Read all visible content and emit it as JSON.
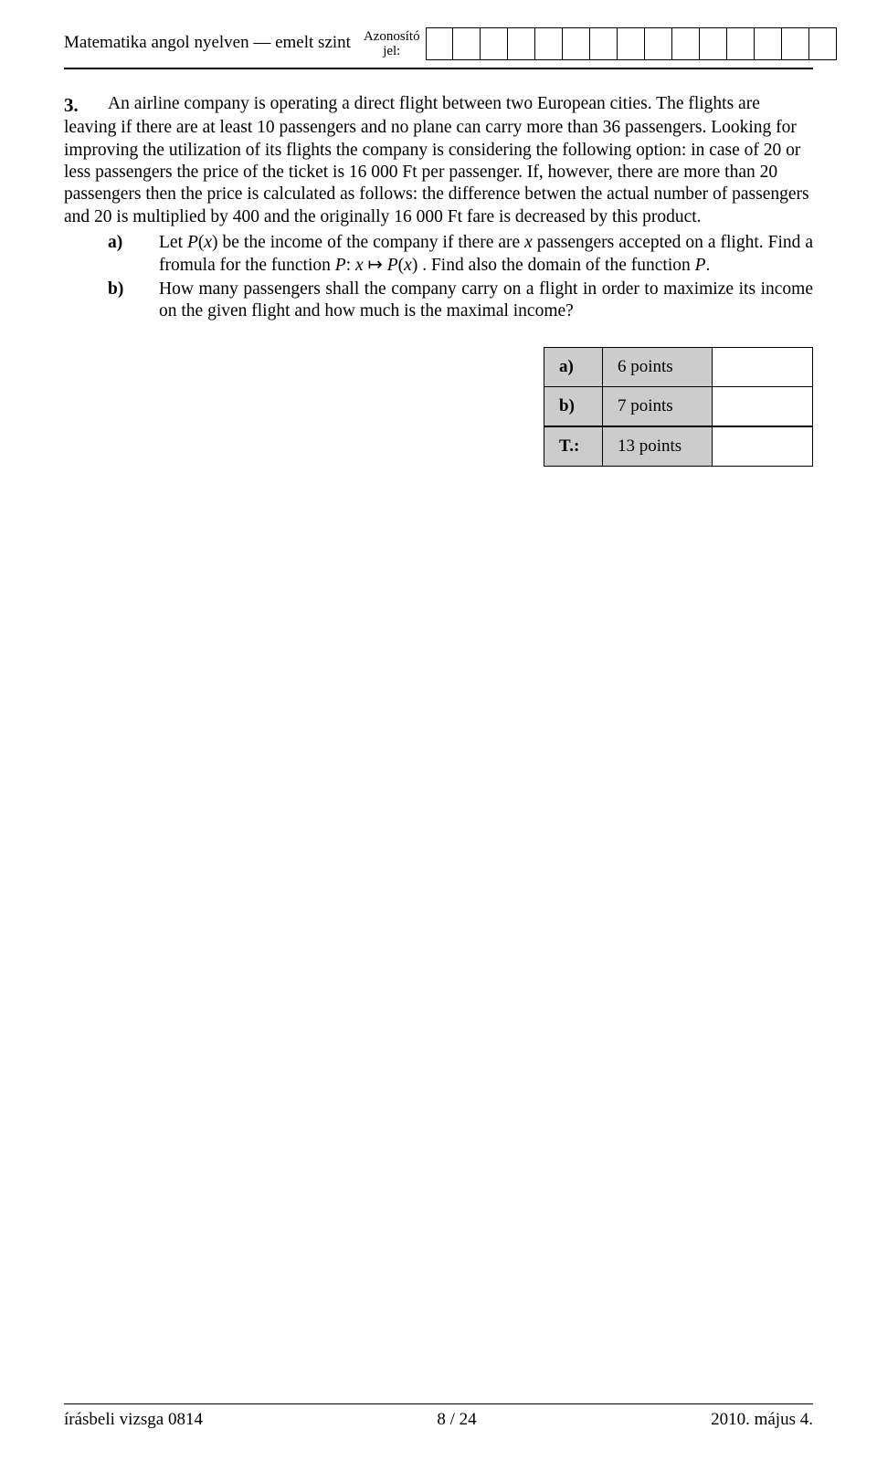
{
  "header": {
    "title": "Matematika angol nyelven — emelt szint",
    "id_label_line1": "Azonosító",
    "id_label_line2": "jel:",
    "id_box_count": 15
  },
  "question": {
    "number": "3.",
    "text": "An airline company is operating a direct flight between two European cities. The flights are leaving if there are at least 10 passengers and no plane can carry more than 36 passengers. Looking for improving the utilization of its flights the company is considering the following option: in case of 20 or less passengers the price of the ticket is 16 000 Ft per passenger. If, however, there are more than  20 passengers then the price is calculated as follows: the difference betwen the actual number of passengers and 20 is multiplied by 400 and the originally 16 000 Ft fare is decreased by this product.",
    "parts": [
      {
        "label": "a)",
        "text": "Let P(x) be the income of the company if there are x passengers accepted on a flight. Find a fromula for the function  P: x ↦ P(x) . Find also the domain of the function P."
      },
      {
        "label": "b)",
        "text": "How many passengers shall the company carry on a flight in order to maximize its income on the given flight and how much is the maximal income?"
      }
    ]
  },
  "points": {
    "rows": [
      {
        "label": "a)",
        "value": "6 points"
      },
      {
        "label": "b)",
        "value": "7 points"
      }
    ],
    "total": {
      "label": "T.:",
      "value": "13 points"
    }
  },
  "footer": {
    "left": "írásbeli vizsga 0814",
    "center": "8 / 24",
    "right": "2010. május 4."
  }
}
